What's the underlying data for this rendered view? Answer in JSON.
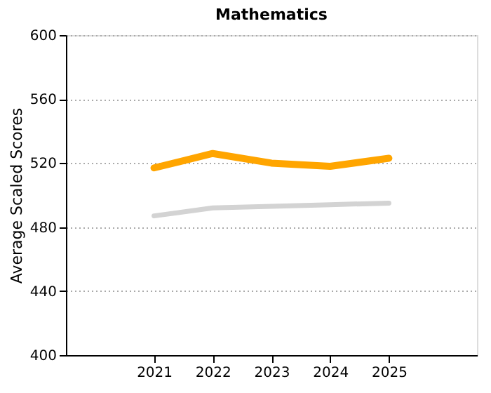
{
  "chart_data": {
    "type": "line",
    "title": "Mathematics",
    "ylabel": "Average Scaled Scores",
    "categories": [
      "2021",
      "2022",
      "2023",
      "2024",
      "2025"
    ],
    "series": [
      {
        "color": "#ffa500",
        "values": [
          517,
          526,
          520,
          518,
          523
        ]
      },
      {
        "color": "#d3d3d3",
        "values": [
          487,
          492,
          493,
          494,
          495
        ]
      }
    ],
    "ylim": [
      400,
      600
    ],
    "yticks": [
      400,
      440,
      480,
      520,
      560,
      600
    ],
    "grid": "y",
    "legend": false,
    "marker": "none",
    "line_style": "solid"
  }
}
